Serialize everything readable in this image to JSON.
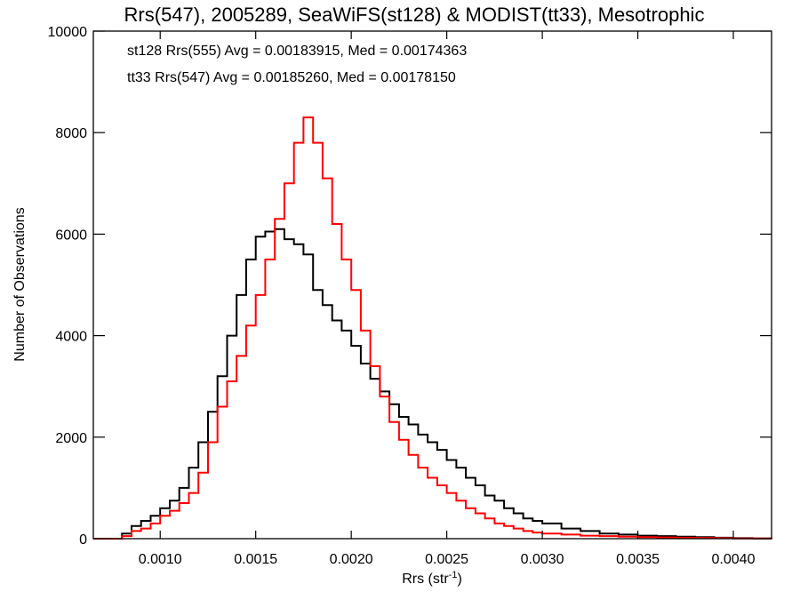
{
  "chart_data": {
    "type": "line",
    "title": "Rrs(547), 2005289, SeaWiFS(st128) & MODIST(tt33), Mesotrophic",
    "xlabel": "Rrs (str",
    "xlabel_sup": "-1",
    "xlabel_end": ")",
    "ylabel": "Number of Observations",
    "xlim": [
      0.00065,
      0.0042
    ],
    "ylim": [
      0,
      10000
    ],
    "x_ticks": [
      0.001,
      0.0015,
      0.002,
      0.0025,
      0.003,
      0.0035,
      0.004
    ],
    "x_tick_labels": [
      "0.0010",
      "0.0015",
      "0.0020",
      "0.0025",
      "0.0030",
      "0.0035",
      "0.0040"
    ],
    "y_ticks": [
      0,
      2000,
      4000,
      6000,
      8000,
      10000
    ],
    "y_tick_labels": [
      "0",
      "2000",
      "4000",
      "6000",
      "8000",
      "10000"
    ],
    "grid": false,
    "annotations": [
      {
        "text": "st128 Rrs(555) Avg = 0.00183915, Med = 0.00174363",
        "color": "#000000"
      },
      {
        "text": "tt33 Rrs(547) Avg = 0.00185260, Med = 0.00178150",
        "color": "#ff0000"
      }
    ],
    "series": [
      {
        "color": "#000000",
        "x": [
          0.00065,
          0.0007,
          0.00075,
          0.0008,
          0.00085,
          0.0009,
          0.00095,
          0.001,
          0.00105,
          0.0011,
          0.00115,
          0.0012,
          0.00125,
          0.0013,
          0.00135,
          0.0014,
          0.00145,
          0.0015,
          0.00155,
          0.0016,
          0.00165,
          0.0017,
          0.00175,
          0.0018,
          0.00185,
          0.0019,
          0.00195,
          0.002,
          0.00205,
          0.0021,
          0.00215,
          0.0022,
          0.00225,
          0.0023,
          0.00235,
          0.0024,
          0.00245,
          0.0025,
          0.00255,
          0.0026,
          0.00265,
          0.0027,
          0.00275,
          0.0028,
          0.00285,
          0.0029,
          0.00295,
          0.003,
          0.0031,
          0.0032,
          0.0033,
          0.0034,
          0.0035,
          0.0036,
          0.0037,
          0.0038,
          0.0039,
          0.004,
          0.0041,
          0.0042
        ],
        "values": [
          0,
          0,
          0,
          100,
          250,
          350,
          450,
          600,
          750,
          1000,
          1400,
          1900,
          2500,
          3200,
          4000,
          4800,
          5500,
          5950,
          6050,
          6100,
          5900,
          5800,
          5600,
          4900,
          4600,
          4300,
          4100,
          3800,
          3450,
          3150,
          2900,
          2650,
          2400,
          2250,
          2050,
          1900,
          1750,
          1550,
          1400,
          1200,
          1050,
          850,
          750,
          600,
          500,
          400,
          350,
          300,
          200,
          150,
          100,
          80,
          60,
          50,
          40,
          30,
          20,
          10,
          5,
          0
        ]
      },
      {
        "color": "#ff0000",
        "x": [
          0.00065,
          0.0007,
          0.00075,
          0.0008,
          0.00085,
          0.0009,
          0.00095,
          0.001,
          0.00105,
          0.0011,
          0.00115,
          0.0012,
          0.00125,
          0.0013,
          0.00135,
          0.0014,
          0.00145,
          0.0015,
          0.00155,
          0.0016,
          0.00165,
          0.0017,
          0.00175,
          0.0018,
          0.00185,
          0.0019,
          0.00195,
          0.002,
          0.00205,
          0.0021,
          0.00215,
          0.0022,
          0.00225,
          0.0023,
          0.00235,
          0.0024,
          0.00245,
          0.0025,
          0.00255,
          0.0026,
          0.00265,
          0.0027,
          0.00275,
          0.0028,
          0.00285,
          0.0029,
          0.00295,
          0.003,
          0.0031,
          0.0032,
          0.0033,
          0.0034,
          0.0035,
          0.0036,
          0.0037,
          0.0038,
          0.0039,
          0.004,
          0.0041,
          0.0042
        ],
        "values": [
          0,
          0,
          0,
          50,
          150,
          200,
          300,
          450,
          550,
          700,
          900,
          1300,
          1900,
          2600,
          3100,
          3600,
          4200,
          4800,
          5500,
          6300,
          7000,
          7800,
          8300,
          7800,
          7100,
          6200,
          5500,
          4900,
          4100,
          3400,
          2800,
          2300,
          1950,
          1650,
          1400,
          1200,
          1050,
          900,
          750,
          600,
          500,
          400,
          300,
          250,
          200,
          150,
          120,
          100,
          80,
          60,
          50,
          40,
          30,
          25,
          20,
          15,
          10,
          5,
          3,
          0
        ]
      }
    ]
  }
}
